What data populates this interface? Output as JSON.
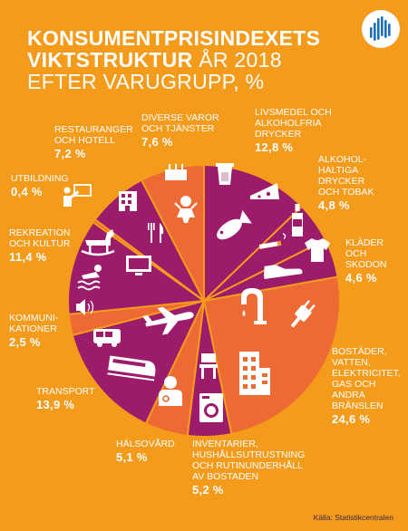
{
  "header": {
    "title_line1": "KONSUMENTPRISINDEXETS",
    "title_line2_bold": "VIKTSTRUKTUR",
    "title_line2_rest": "ÅR 2018",
    "title_line3": "EFTER VARUGRUPP, %"
  },
  "colors": {
    "background": "#f59b1c",
    "purple": "#9c1c6b",
    "red_orange": "#ed6a35",
    "text": "#ffffff"
  },
  "chart_data": {
    "type": "pie",
    "title": "KONSUMENTPRISINDEXETS VIKTSTRUKTUR ÅR 2018 EFTER VARUGRUPP, %",
    "slices": [
      {
        "name": "LIVSMEDEL OCH ALKOHOLFRIA DRYCKER",
        "value": 12.8,
        "label": "12,8 %",
        "color": "#9c1c6b",
        "icons": [
          "glass-icon",
          "cheese-icon",
          "fish-icon"
        ]
      },
      {
        "name": "ALKOHOLHALTIGA DRYCKER OCH TOBAK",
        "value": 4.8,
        "label": "4,8 %",
        "color": "#9c1c6b",
        "icons": [
          "bottle-icon",
          "cigarette-icon"
        ]
      },
      {
        "name": "KLÄDER OCH SKODON",
        "value": 4.6,
        "label": "4,6 %",
        "color": "#9c1c6b",
        "icons": [
          "shoe-icon",
          "shirt-icon"
        ]
      },
      {
        "name": "BOSTÄDER, VATTEN, ELEKTRICITET, GAS OCH ANDRA BRÄNSLEN",
        "value": 24.6,
        "label": "24,6 %",
        "color": "#ed6a35",
        "icons": [
          "faucet-icon",
          "plug-icon",
          "building-icon"
        ]
      },
      {
        "name": "INVENTARIER, HUSHÅLLSUTRUSTNING OCH RUTINUNDERHÅLL AV BOSTADEN",
        "value": 5.2,
        "label": "5,2 %",
        "color": "#9c1c6b",
        "icons": [
          "chair-icon",
          "washing-machine-icon"
        ]
      },
      {
        "name": "HÄLSOVÅRD",
        "value": 5.1,
        "label": "5,1 %",
        "color": "#ed6a35",
        "icons": [
          "doctor-icon"
        ]
      },
      {
        "name": "TRANSPORT",
        "value": 13.9,
        "label": "13,9 %",
        "color": "#9c1c6b",
        "icons": [
          "airplane-icon",
          "bus-icon",
          "train-icon"
        ]
      },
      {
        "name": "KOMMUNIKATIONER",
        "value": 2.5,
        "label": "2,5 %",
        "color": "#ed6a35",
        "icons": [
          "speaker-icon"
        ]
      },
      {
        "name": "REKREATION OCH KULTUR",
        "value": 11.4,
        "label": "11,4 %",
        "color": "#9c1c6b",
        "icons": [
          "rocking-horse-icon",
          "swimmer-icon",
          "tv-icon"
        ]
      },
      {
        "name": "UTBILDNING",
        "value": 0.4,
        "label": "0,4 %",
        "color": "#ed6a35",
        "icons": [
          "teacher-icon"
        ]
      },
      {
        "name": "RESTAURANGER OCH HOTELL",
        "value": 7.2,
        "label": "7,2 %",
        "color": "#9c1c6b",
        "icons": [
          "hotel-icon",
          "cutlery-icon"
        ]
      },
      {
        "name": "DIVERSE VAROR OCH TJÄNSTER",
        "value": 7.6,
        "label": "7,6 %",
        "color": "#ed6a35",
        "icons": [
          "cake-icon",
          "baby-icon"
        ]
      }
    ]
  },
  "labels": {
    "livsmedel": {
      "lines": [
        "LIVSMEDEL OCH",
        "ALKOHOLFRIA",
        "DRYCKER"
      ],
      "pct": "12,8 %"
    },
    "alkohol": {
      "lines": [
        "ALKOHOL-",
        "HALTIGA",
        "DRYCKER",
        "OCH TOBAK"
      ],
      "pct": "4,8 %"
    },
    "klader": {
      "lines": [
        "KLÄDER",
        "OCH",
        "SKODON"
      ],
      "pct": "4,6 %"
    },
    "bostader": {
      "lines": [
        "BOSTÄDER,",
        "VATTEN,",
        "ELEKTRICITET,",
        "GAS OCH",
        "ANDRA",
        "BRÄNSLEN"
      ],
      "pct": "24,6 %"
    },
    "inventarier": {
      "lines": [
        "INVENTARIER,",
        "HUSHÅLLSUTRUSTNING",
        "OCH RUTINUNDERHÅLL",
        "AV BOSTADEN"
      ],
      "pct": "5,2 %"
    },
    "halsovard": {
      "lines": [
        "HÄLSOVÅRD"
      ],
      "pct": "5,1 %"
    },
    "transport": {
      "lines": [
        "TRANSPORT"
      ],
      "pct": "13,9 %"
    },
    "kommunikationer": {
      "lines": [
        "KOMMUNI-",
        "KATIONER"
      ],
      "pct": "2,5 %"
    },
    "rekreation": {
      "lines": [
        "REKREATION",
        "OCH KULTUR"
      ],
      "pct": "11,4 %"
    },
    "utbildning": {
      "lines": [
        "UTBILDNING"
      ],
      "pct": "0,4 %"
    },
    "restauranger": {
      "lines": [
        "RESTAURANGER",
        "OCH HOTELL"
      ],
      "pct": "7,2 %"
    },
    "diverse": {
      "lines": [
        "DIVERSE VAROR",
        "OCH TJÄNSTER"
      ],
      "pct": "7,6 %"
    }
  },
  "footer": {
    "source": "Källa: Statistikcentralen"
  },
  "logo": {
    "icon": "statistics-finland-logo-icon"
  }
}
